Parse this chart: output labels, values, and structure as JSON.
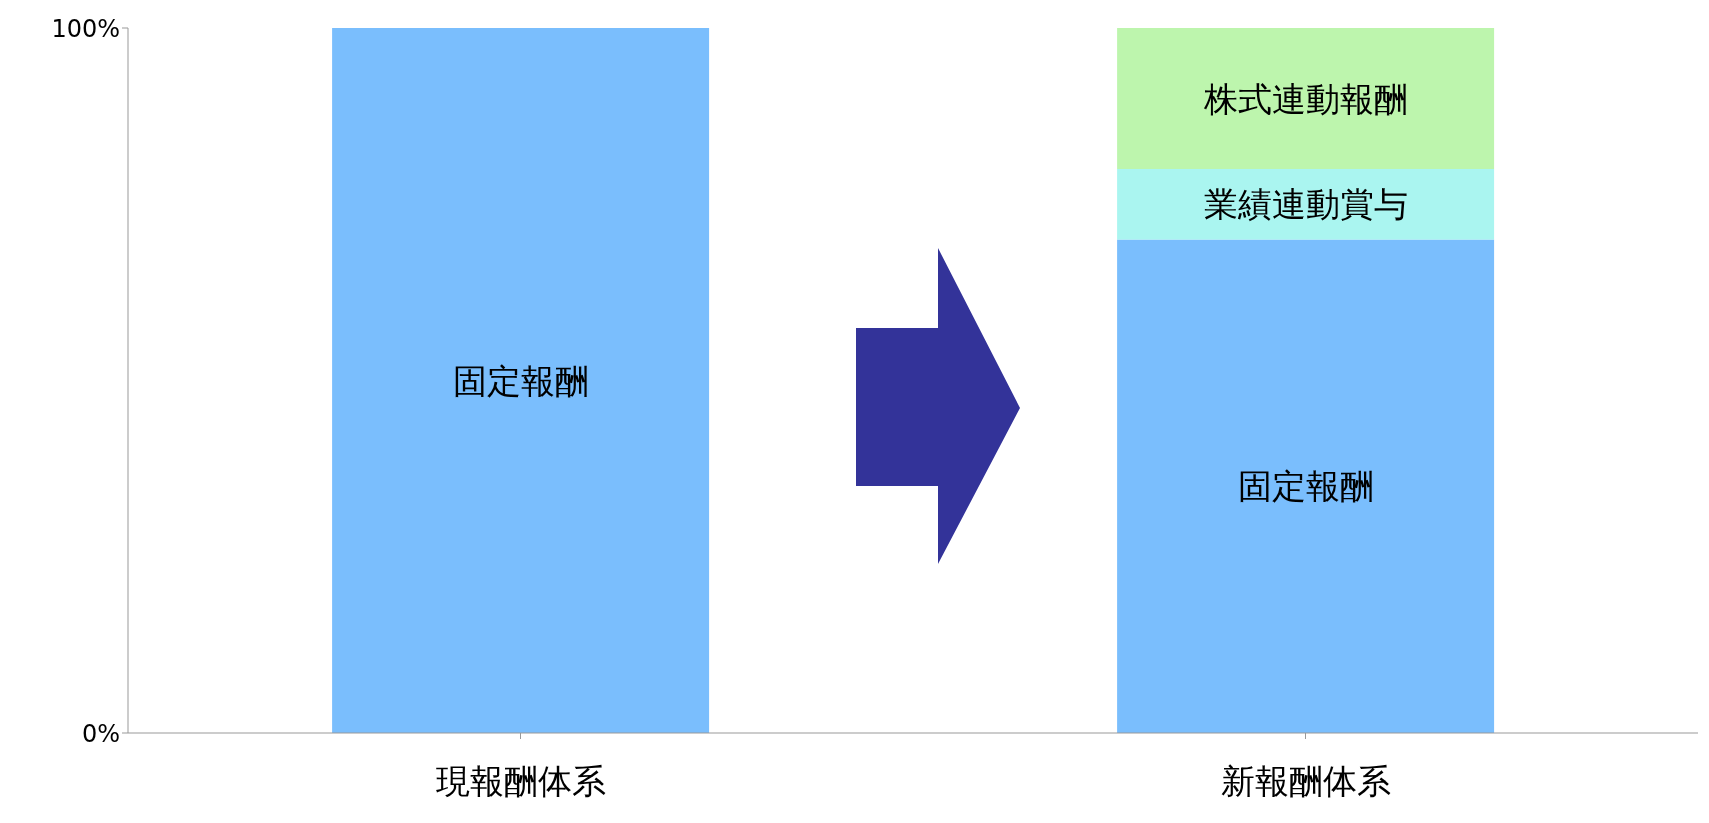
{
  "chart_data": {
    "type": "bar",
    "stacked": true,
    "categories": [
      "現報酬体系",
      "新報酬体系"
    ],
    "series": [
      {
        "name": "固定報酬",
        "color": "#7abefd",
        "values": [
          100,
          70
        ]
      },
      {
        "name": "業績連動賞与",
        "color": "#aaf5f0",
        "values": [
          null,
          10
        ]
      },
      {
        "name": "株式連動報酬",
        "color": "#bdf5ad",
        "values": [
          null,
          20
        ]
      }
    ],
    "ylim": [
      0,
      100
    ],
    "yticks": [
      {
        "value": 0,
        "label": "0%"
      },
      {
        "value": 100,
        "label": "100%"
      }
    ],
    "grid": false,
    "legend": false
  }
}
